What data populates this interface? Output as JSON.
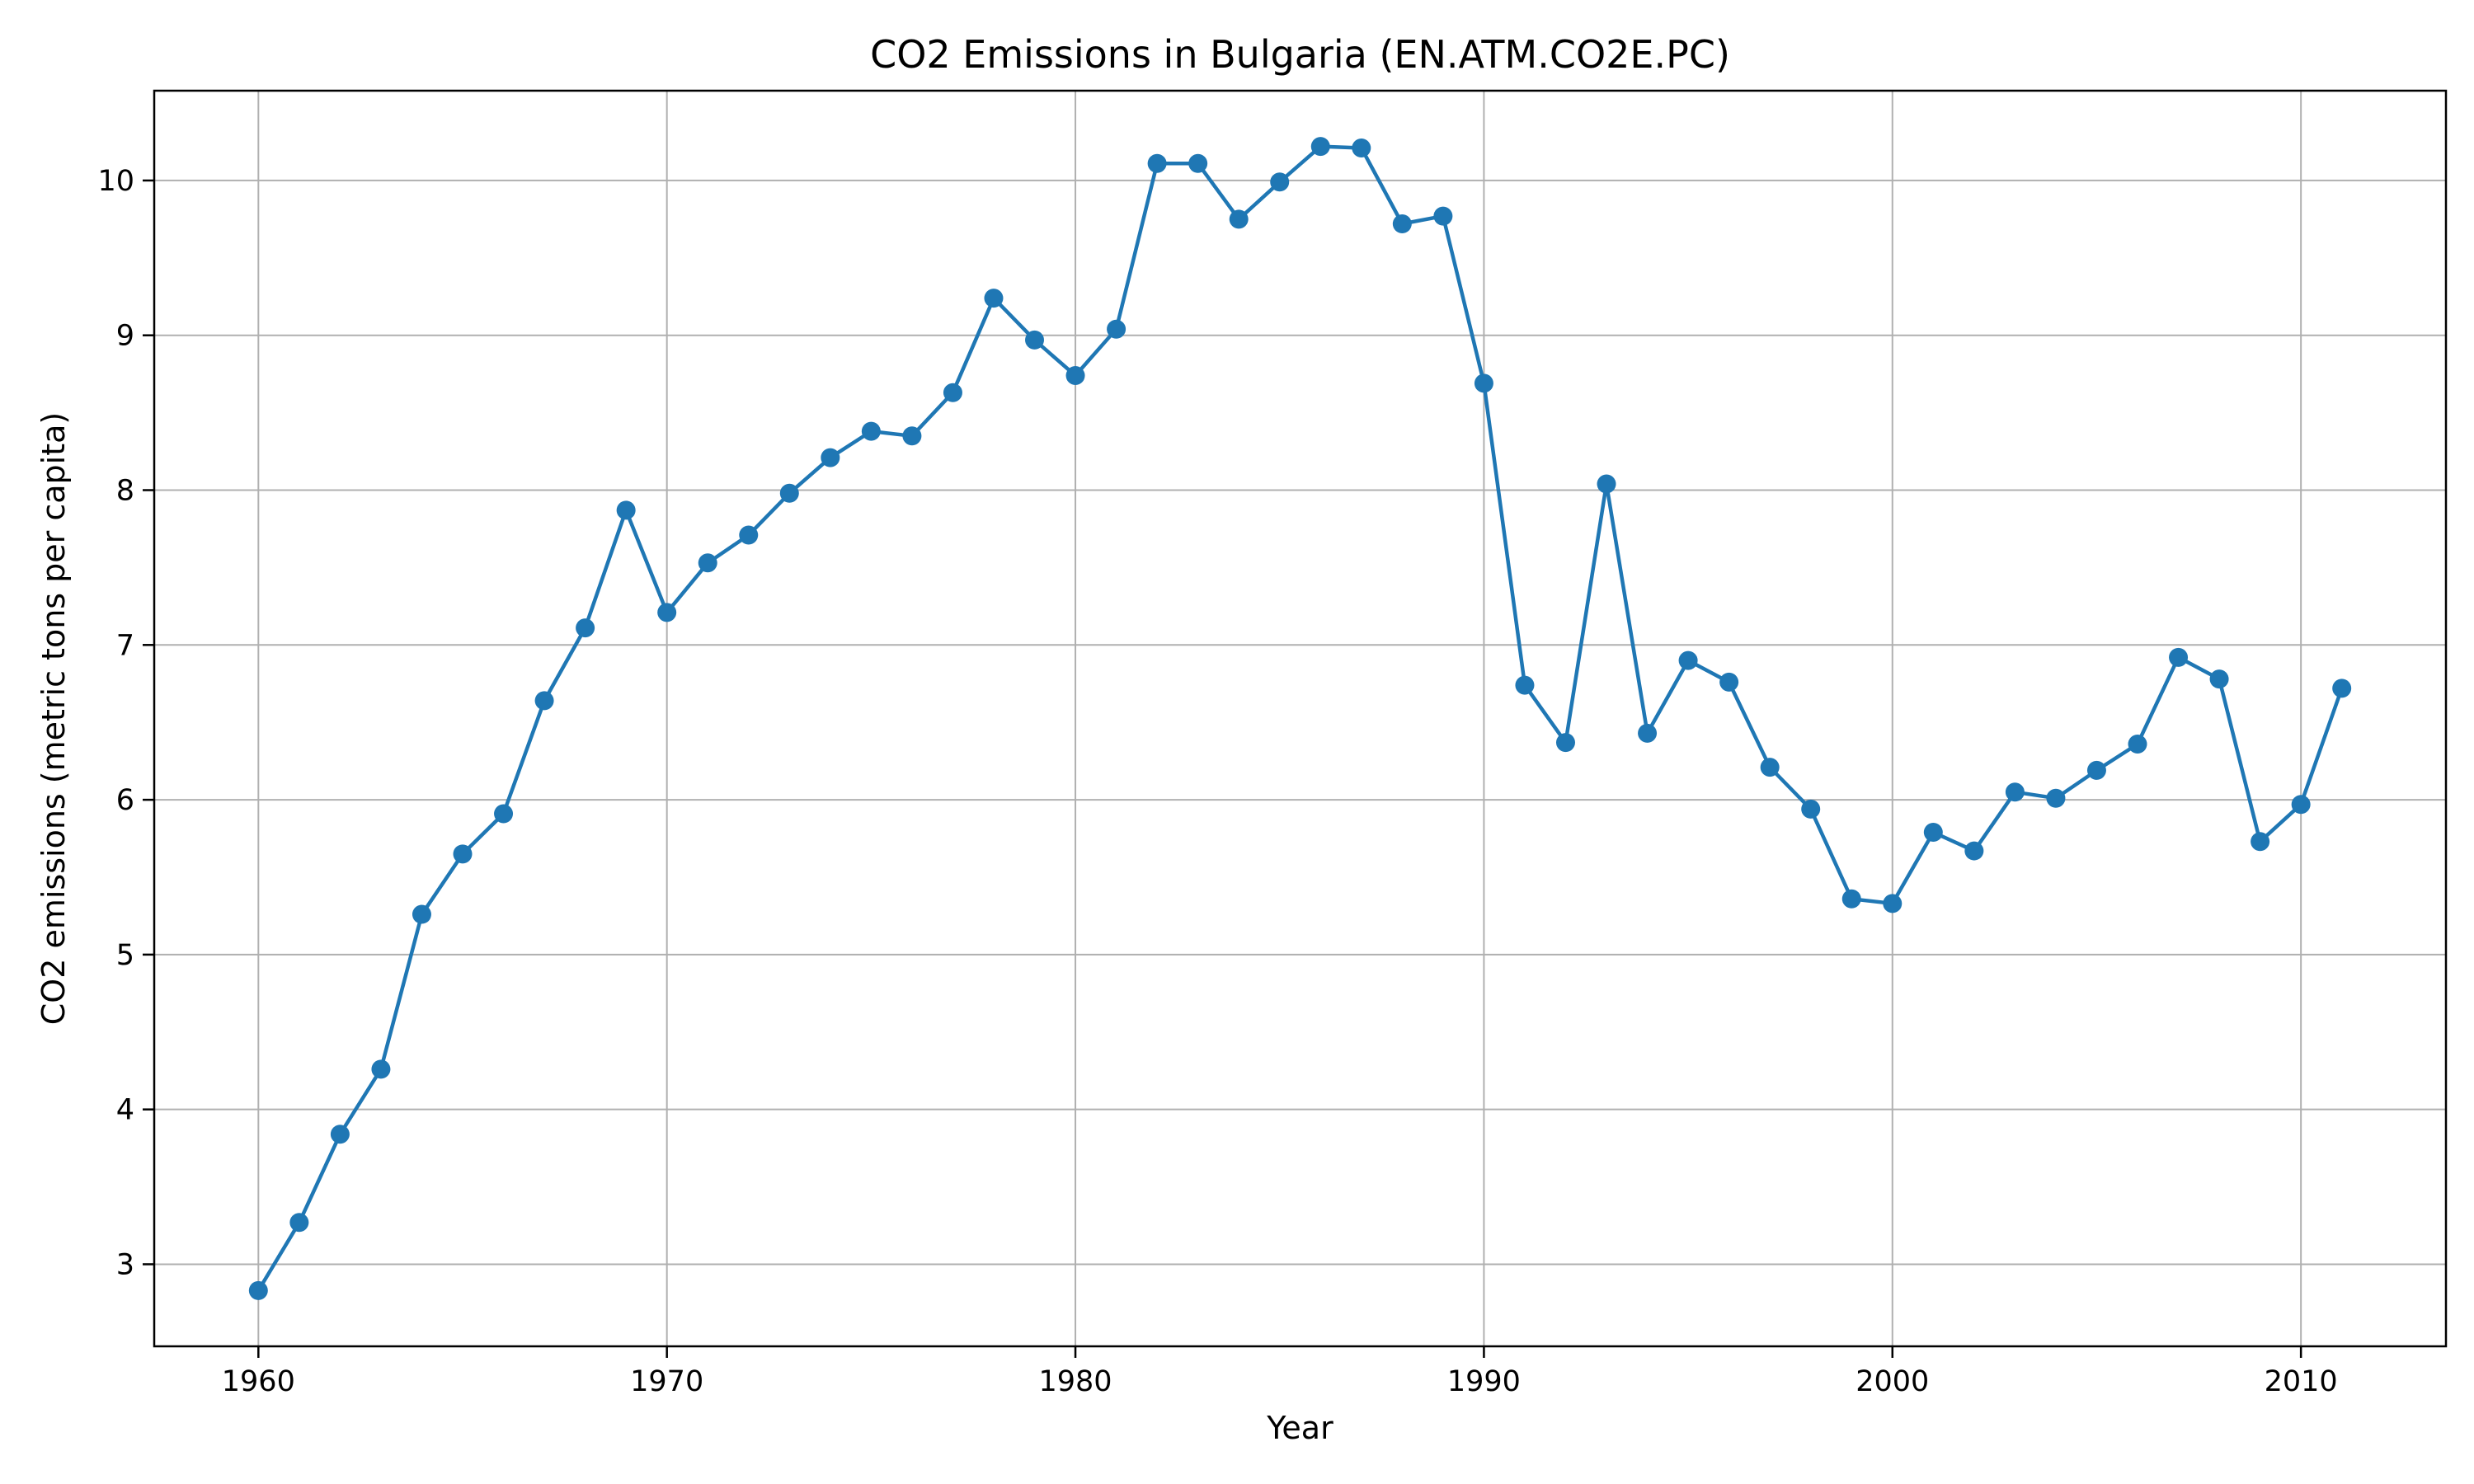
{
  "chart_data": {
    "type": "line",
    "title": "CO2 Emissions in Bulgaria (EN.ATM.CO2E.PC)",
    "xlabel": "Year",
    "ylabel": "CO2 emissions (metric tons per capita)",
    "xlim": [
      1957.45,
      2013.55
    ],
    "ylim": [
      2.47,
      10.58
    ],
    "xticks": [
      1960,
      1970,
      1980,
      1990,
      2000,
      2010
    ],
    "yticks": [
      3,
      4,
      5,
      6,
      7,
      8,
      9,
      10
    ],
    "grid": true,
    "legend": "none",
    "series": [
      {
        "color": "#1f77b4",
        "marker": "circle",
        "x": [
          1960,
          1961,
          1962,
          1963,
          1964,
          1965,
          1966,
          1967,
          1968,
          1969,
          1970,
          1971,
          1972,
          1973,
          1974,
          1975,
          1976,
          1977,
          1978,
          1979,
          1980,
          1981,
          1982,
          1983,
          1984,
          1985,
          1986,
          1987,
          1988,
          1989,
          1990,
          1991,
          1992,
          1993,
          1994,
          1995,
          1996,
          1997,
          1998,
          1999,
          2000,
          2001,
          2002,
          2003,
          2004,
          2005,
          2006,
          2007,
          2008,
          2009,
          2010,
          2011
        ],
        "y": [
          2.83,
          3.27,
          3.84,
          4.26,
          5.26,
          5.65,
          5.91,
          6.64,
          7.11,
          7.87,
          7.21,
          7.53,
          7.71,
          7.98,
          8.21,
          8.38,
          8.35,
          8.63,
          9.24,
          8.97,
          8.74,
          9.04,
          10.11,
          10.11,
          9.75,
          9.99,
          10.22,
          10.21,
          9.72,
          9.77,
          8.69,
          6.74,
          6.37,
          8.04,
          6.43,
          6.9,
          6.76,
          6.21,
          5.94,
          5.36,
          5.33,
          5.79,
          5.67,
          6.05,
          6.01,
          6.19,
          6.36,
          6.92,
          6.78,
          5.73,
          5.97,
          6.72
        ]
      }
    ]
  }
}
